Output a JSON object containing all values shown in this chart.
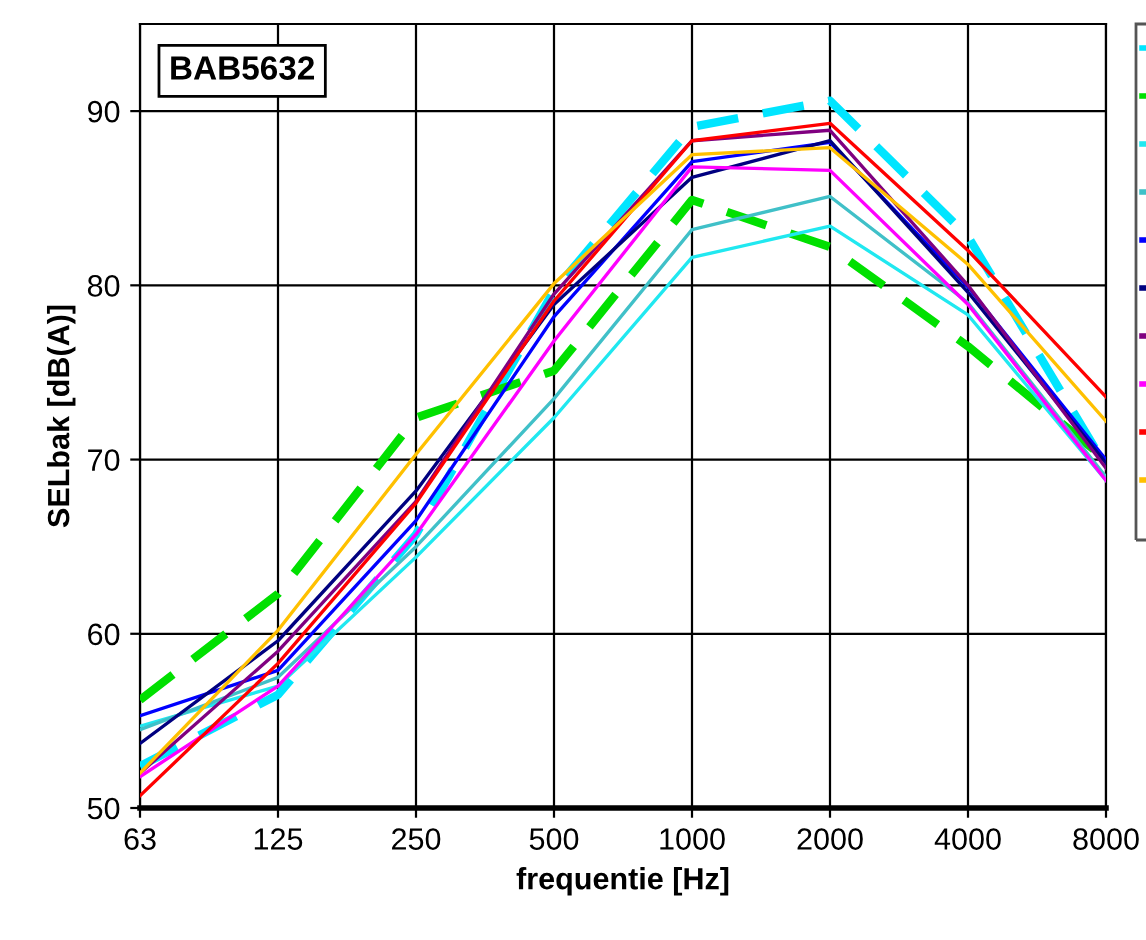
{
  "chart_data": {
    "type": "line",
    "xlabel": "frequentie [Hz]",
    "ylabel": "SELbak [dB(A)]",
    "annotations": [
      "BAB5632"
    ],
    "categories": [
      "63",
      "125",
      "250",
      "500",
      "1000",
      "2000",
      "4000",
      "8000"
    ],
    "ylim": [
      50,
      95
    ],
    "yticks": [
      50,
      60,
      70,
      80,
      90
    ],
    "grid": true,
    "marker": "none",
    "series": [
      {
        "color": "#00e5ff",
        "line_style": "dashed",
        "values": [
          52.4,
          56.5,
          65.7,
          79.7,
          89.1,
          90.6,
          82.8,
          69.6
        ]
      },
      {
        "color": "#00e000",
        "line_style": "dashed",
        "values": [
          56.2,
          62.3,
          72.4,
          75.1,
          84.9,
          82.2,
          76.5,
          70.0
        ]
      },
      {
        "color": "#20e8f0",
        "values": [
          54.7,
          57.0,
          64.4,
          72.4,
          81.6,
          83.4,
          78.3,
          68.8
        ]
      },
      {
        "color": "#40c0c8",
        "values": [
          54.5,
          57.5,
          65.0,
          73.5,
          83.2,
          85.1,
          79.0,
          69.0
        ]
      },
      {
        "color": "#0000ff",
        "values": [
          55.3,
          57.9,
          66.5,
          78.2,
          87.1,
          88.2,
          79.9,
          70.0
        ]
      },
      {
        "color": "#000080",
        "values": [
          53.7,
          59.6,
          68.2,
          78.9,
          86.2,
          88.3,
          79.6,
          69.8
        ]
      },
      {
        "color": "#800080",
        "values": [
          52.0,
          59.0,
          67.6,
          79.5,
          88.3,
          88.9,
          80.0,
          69.5
        ]
      },
      {
        "color": "#ff00ff",
        "values": [
          51.8,
          57.0,
          65.7,
          76.8,
          86.8,
          86.6,
          78.9,
          68.8
        ]
      },
      {
        "color": "#ff0000",
        "values": [
          50.7,
          58.3,
          67.5,
          79.1,
          88.3,
          89.3,
          82.0,
          73.6
        ]
      },
      {
        "color": "#ffc000",
        "values": [
          52.0,
          60.2,
          70.3,
          80.1,
          87.5,
          87.9,
          81.2,
          72.2
        ]
      }
    ]
  }
}
